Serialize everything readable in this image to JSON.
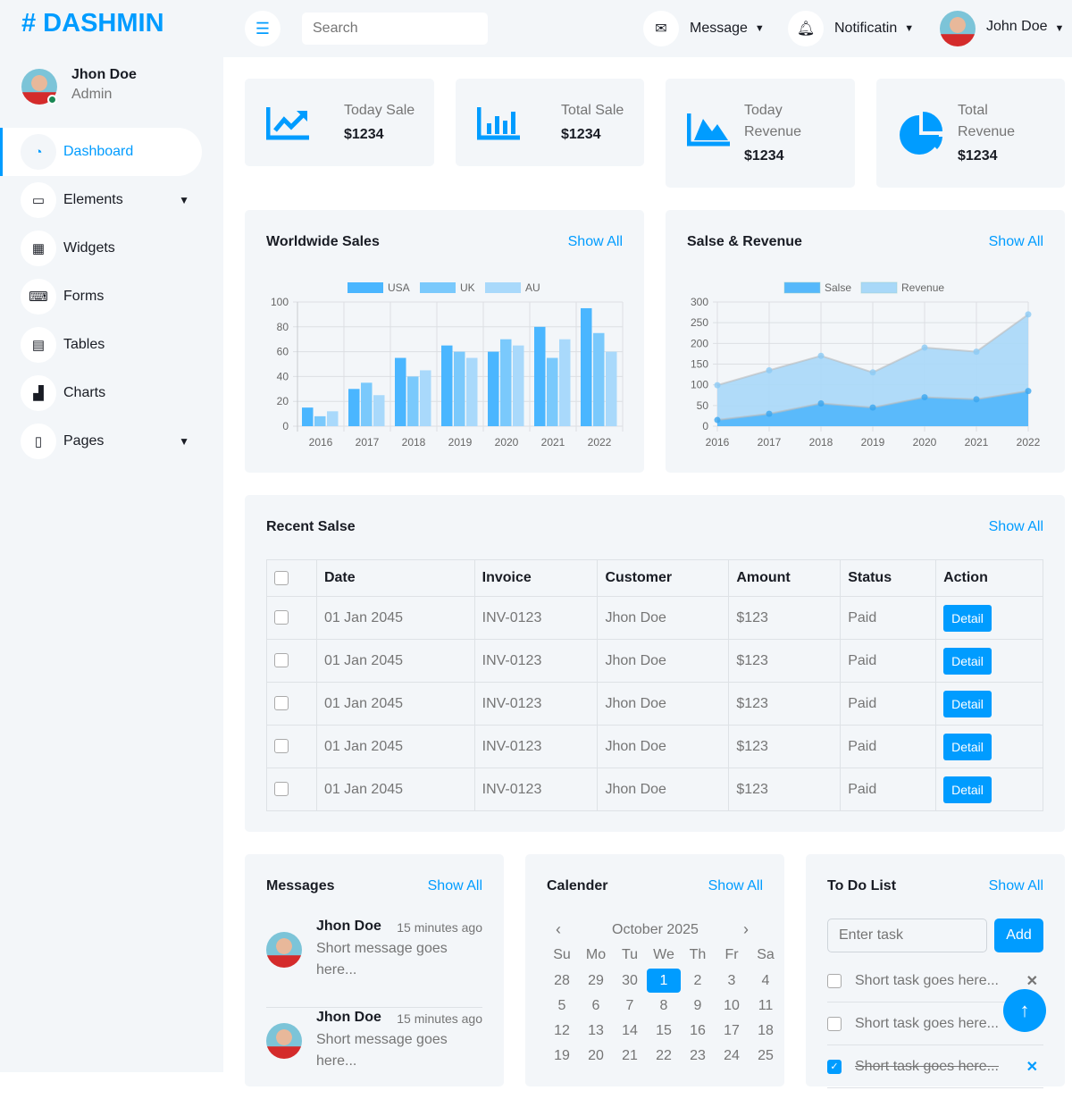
{
  "brand": {
    "logo": "# DASHMIN",
    "color": "#009CFF"
  },
  "user": {
    "name": "Jhon Doe",
    "role": "Admin",
    "status": "online"
  },
  "sidebar": {
    "items": [
      {
        "label": "Dashboard",
        "icon": "gauge-icon",
        "glyph": "◔",
        "active": true
      },
      {
        "label": "Elements",
        "icon": "laptop-icon",
        "glyph": "▭",
        "chevron": true
      },
      {
        "label": "Widgets",
        "icon": "grid-icon",
        "glyph": "▦"
      },
      {
        "label": "Forms",
        "icon": "keyboard-icon",
        "glyph": "⌨"
      },
      {
        "label": "Tables",
        "icon": "table-icon",
        "glyph": "▤"
      },
      {
        "label": "Charts",
        "icon": "chart-bar-icon",
        "glyph": "▟"
      },
      {
        "label": "Pages",
        "icon": "file-icon",
        "glyph": "▯",
        "chevron": true
      }
    ]
  },
  "topbar": {
    "search_placeholder": "Search",
    "message": "Message",
    "notification": "Notificatin",
    "user": "John Doe"
  },
  "stats": [
    {
      "label": "Today Sale",
      "value": "$1234",
      "icon": "chart-line-icon"
    },
    {
      "label": "Total Sale",
      "value": "$1234",
      "icon": "chart-bar-icon"
    },
    {
      "label": "Today Revenue",
      "value": "$1234",
      "icon": "chart-area-icon"
    },
    {
      "label": "Total Revenue",
      "value": "$1234",
      "icon": "chart-pie-icon"
    }
  ],
  "worldwide": {
    "title": "Worldwide Sales",
    "show_all": "Show All"
  },
  "salesrev": {
    "title": "Salse & Revenue",
    "show_all": "Show All"
  },
  "chart_data": [
    {
      "type": "bar",
      "categories": [
        "2016",
        "2017",
        "2018",
        "2019",
        "2020",
        "2021",
        "2022"
      ],
      "ylim": [
        0,
        100
      ],
      "yticks": [
        "0",
        "20",
        "40",
        "60",
        "80",
        "100"
      ],
      "grid": true,
      "legend": "top",
      "series": [
        {
          "name": "USA",
          "values": [
            15,
            30,
            55,
            65,
            60,
            80,
            95
          ],
          "color": "#4ab6ff"
        },
        {
          "name": "UK",
          "values": [
            8,
            35,
            40,
            60,
            70,
            55,
            75
          ],
          "color": "#7ac9fc"
        },
        {
          "name": "AU",
          "values": [
            12,
            25,
            45,
            55,
            65,
            70,
            60
          ],
          "color": "#a9d9fb"
        }
      ]
    },
    {
      "type": "area",
      "categories": [
        "2016",
        "2017",
        "2018",
        "2019",
        "2020",
        "2021",
        "2022"
      ],
      "ylim": [
        0,
        300
      ],
      "yticks": [
        "0",
        "50",
        "100",
        "150",
        "200",
        "250",
        "300"
      ],
      "grid": true,
      "legend": "top",
      "series": [
        {
          "name": "Salse",
          "values": [
            15,
            30,
            55,
            45,
            70,
            65,
            85
          ],
          "color": "#55b8fb"
        },
        {
          "name": "Revenue",
          "values": [
            99,
            135,
            170,
            130,
            190,
            180,
            270
          ],
          "color": "#a8d8f8"
        }
      ]
    }
  ],
  "recent": {
    "title": "Recent Salse",
    "show_all": "Show All",
    "headers": [
      "Date",
      "Invoice",
      "Customer",
      "Amount",
      "Status",
      "Action"
    ],
    "rows": [
      {
        "date": "01 Jan 2045",
        "invoice": "INV-0123",
        "customer": "Jhon Doe",
        "amount": "$123",
        "status": "Paid",
        "action": "Detail"
      },
      {
        "date": "01 Jan 2045",
        "invoice": "INV-0123",
        "customer": "Jhon Doe",
        "amount": "$123",
        "status": "Paid",
        "action": "Detail"
      },
      {
        "date": "01 Jan 2045",
        "invoice": "INV-0123",
        "customer": "Jhon Doe",
        "amount": "$123",
        "status": "Paid",
        "action": "Detail"
      },
      {
        "date": "01 Jan 2045",
        "invoice": "INV-0123",
        "customer": "Jhon Doe",
        "amount": "$123",
        "status": "Paid",
        "action": "Detail"
      },
      {
        "date": "01 Jan 2045",
        "invoice": "INV-0123",
        "customer": "Jhon Doe",
        "amount": "$123",
        "status": "Paid",
        "action": "Detail"
      }
    ]
  },
  "messages": {
    "title": "Messages",
    "show_all": "Show All",
    "items": [
      {
        "name": "Jhon Doe",
        "time": "15 minutes ago",
        "text": "Short message goes here..."
      },
      {
        "name": "Jhon Doe",
        "time": "15 minutes ago",
        "text": "Short message goes here..."
      }
    ]
  },
  "calendar": {
    "title": "Calender",
    "show_all": "Show All",
    "month": "October 2025",
    "days": [
      "Su",
      "Mo",
      "Tu",
      "We",
      "Th",
      "Fr",
      "Sa"
    ],
    "weeks": [
      [
        "28",
        "29",
        "30",
        "1",
        "2",
        "3",
        "4"
      ],
      [
        "5",
        "6",
        "7",
        "8",
        "9",
        "10",
        "11"
      ],
      [
        "12",
        "13",
        "14",
        "15",
        "16",
        "17",
        "18"
      ],
      [
        "19",
        "20",
        "21",
        "22",
        "23",
        "24",
        "25"
      ]
    ],
    "selected": "1"
  },
  "todo": {
    "title": "To Do List",
    "show_all": "Show All",
    "placeholder": "Enter task",
    "add": "Add",
    "tasks": [
      {
        "text": "Short task goes here...",
        "done": false
      },
      {
        "text": "Short task goes here...",
        "done": false
      },
      {
        "text": "Short task goes here...",
        "done": true
      }
    ]
  }
}
